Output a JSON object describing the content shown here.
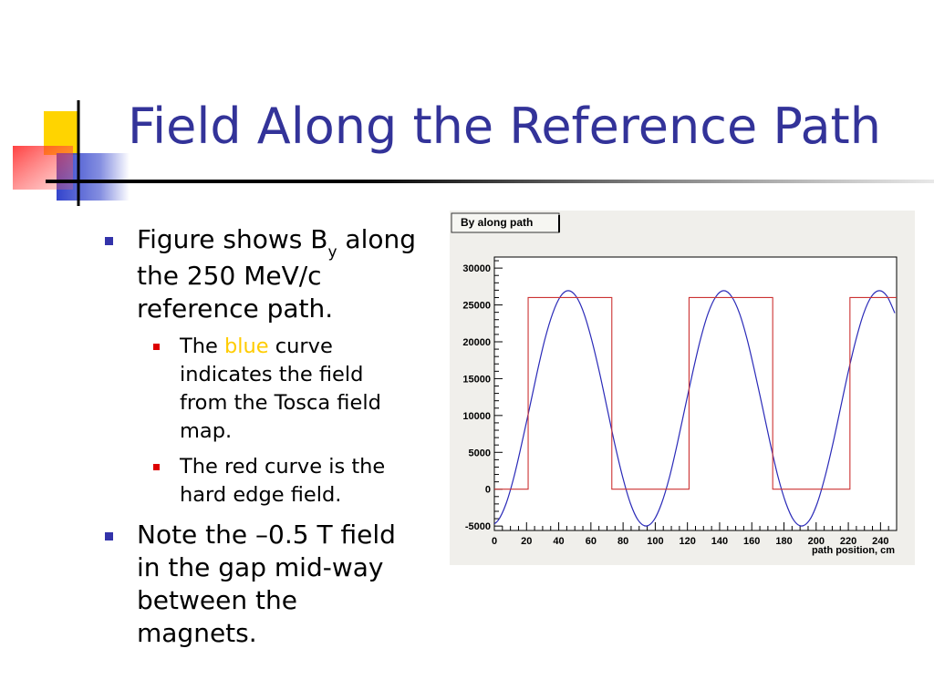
{
  "slide": {
    "title": "Field Along the Reference Path"
  },
  "bullets": {
    "b1": {
      "text": "Figure shows B",
      "sub": "y",
      "rest": " along the 250 MeV/c reference path."
    },
    "b1_subs": {
      "s1_before": "The ",
      "s1_highlight": "blue",
      "s1_after": " curve indicates the field from the Tosca field map.",
      "s2": "The red curve is the hard edge field."
    },
    "b2": {
      "text": "Note the –0.5 T field in the gap mid-way between the magnets."
    }
  },
  "colors": {
    "title": "#333399",
    "highlight": "#ffcc00",
    "blue_curve": "#2a2ab8",
    "red_curve": "#cc3333"
  },
  "chart_data": {
    "type": "line",
    "title": "By along path",
    "xlabel": "path position, cm",
    "ylabel": "",
    "xlim": [
      0,
      250
    ],
    "ylim": [
      -5600,
      31500
    ],
    "x_ticks": [
      0,
      20,
      40,
      60,
      80,
      100,
      120,
      140,
      160,
      180,
      200,
      220,
      240
    ],
    "y_ticks": [
      -5000,
      0,
      5000,
      10000,
      15000,
      20000,
      25000,
      30000
    ],
    "grid": false,
    "series": [
      {
        "color": "blue",
        "x": [
          -2.4,
          2.4,
          7.3,
          12.1,
          16.9,
          21.8,
          26.6,
          31.4,
          36.3,
          41.1,
          45.9,
          50.8,
          55.6,
          60.4,
          65.3,
          70.1,
          74.9,
          79.8,
          84.6,
          89.4,
          94.3,
          99.1,
          103.9,
          108.8,
          113.6,
          118.4,
          123.3,
          128.1,
          132.9,
          137.8,
          142.6,
          147.4,
          152.3,
          157.1,
          161.9,
          166.8,
          171.6,
          176.4,
          181.3,
          186.1,
          190.9,
          195.8,
          200.6,
          205.4,
          210.3,
          215.1,
          219.9,
          224.8,
          229.6,
          234.4,
          239.3,
          244.1,
          248.9
        ],
        "y": [
          -5000,
          -4220,
          -1950,
          1600,
          6070,
          10970,
          15870,
          20340,
          23890,
          26160,
          26940,
          26160,
          23890,
          20340,
          15870,
          10970,
          6070,
          1600,
          -1950,
          -4220,
          -5000,
          -4220,
          -1950,
          1600,
          6070,
          10970,
          15870,
          20340,
          23890,
          26160,
          26940,
          26160,
          23890,
          20340,
          15870,
          10970,
          6070,
          1600,
          -1950,
          -4220,
          -5000,
          -4220,
          -1950,
          1600,
          6070,
          10970,
          15870,
          20340,
          23890,
          26160,
          26940,
          26160,
          23890
        ]
      },
      {
        "color": "red",
        "x": [
          0,
          21,
          21,
          73,
          73,
          121,
          121,
          173,
          173,
          221,
          221,
          250
        ],
        "y": [
          0,
          0,
          26000,
          26000,
          0,
          0,
          26000,
          26000,
          0,
          0,
          26000,
          26000
        ]
      }
    ]
  }
}
